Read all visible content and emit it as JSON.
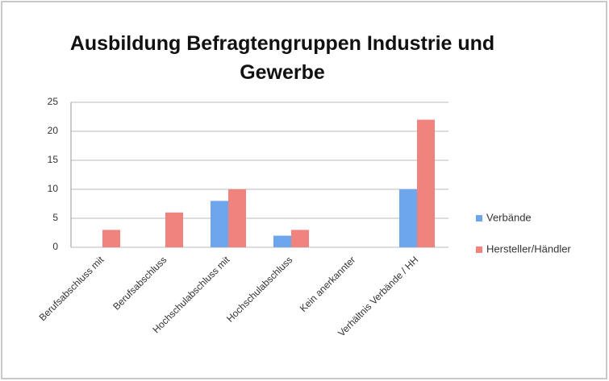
{
  "chart_data": {
    "type": "bar",
    "title": "Ausbildung Befragtengruppen Industrie und Gewerbe",
    "categories": [
      "Berufsabschluss mit",
      "Berufsabschluss",
      "Hochschulabschluss mit",
      "Hochschulabschluss",
      "Kein anerkannter",
      "Verhältnis Verbände / HH"
    ],
    "series": [
      {
        "name": "Verbände",
        "color": "#6ea6ee",
        "values": [
          0,
          0,
          8,
          2,
          0,
          10
        ]
      },
      {
        "name": "Hersteller/Händler",
        "color": "#f0837e",
        "values": [
          3,
          6,
          10,
          3,
          0,
          22
        ]
      }
    ],
    "ylim": [
      0,
      25
    ],
    "yticks": [
      0,
      5,
      10,
      15,
      20,
      25
    ],
    "grid": true,
    "legend": "right"
  }
}
